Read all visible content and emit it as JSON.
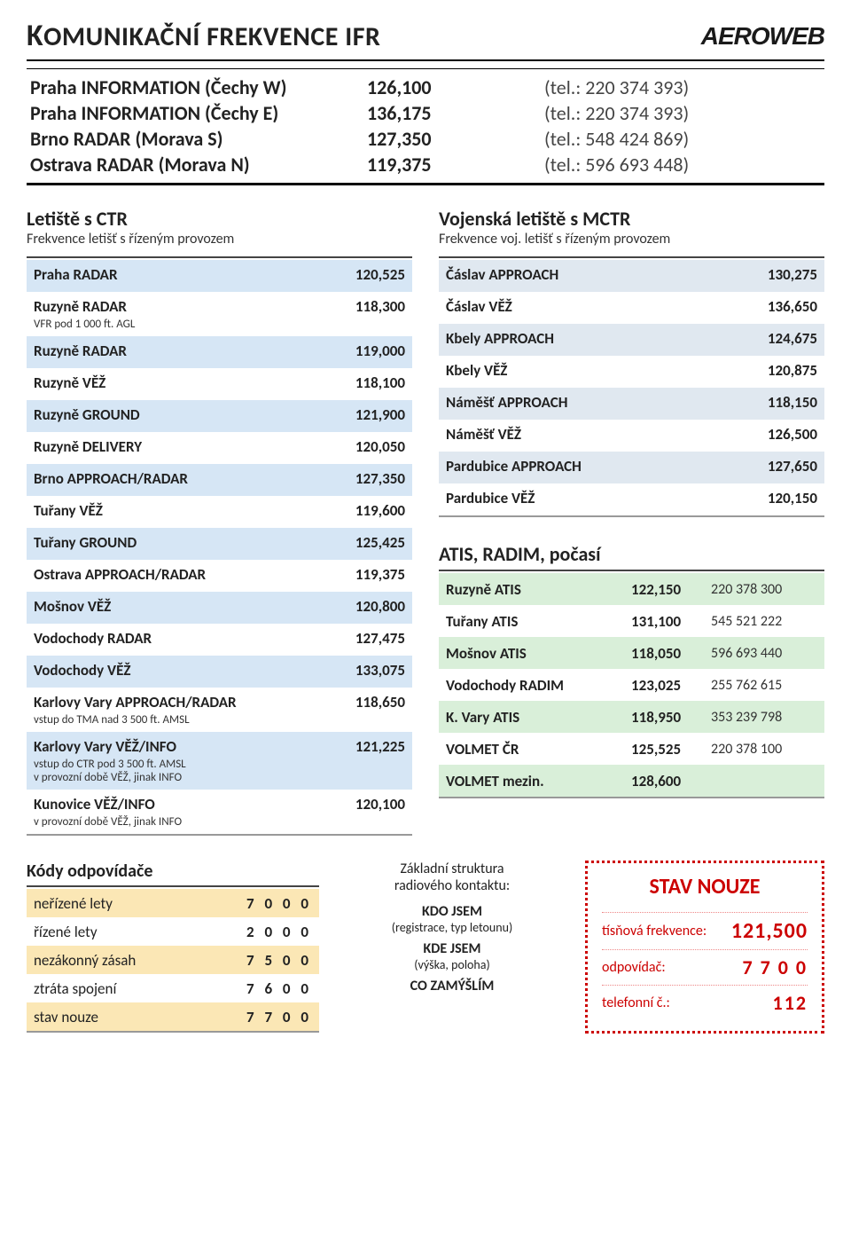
{
  "header": {
    "title_pre": "K",
    "title": "OMUNIKAČNÍ FREKVENCE",
    "title_suffix": "IFR",
    "logo": "AEROWEB"
  },
  "main_freq": [
    {
      "name": "Praha INFORMATION (Čechy W)",
      "freq": "126,100",
      "tel": "(tel.: 220 374 393)"
    },
    {
      "name": "Praha INFORMATION (Čechy E)",
      "freq": "136,175",
      "tel": "(tel.: 220 374 393)"
    },
    {
      "name": "Brno RADAR (Morava S)",
      "freq": "127,350",
      "tel": "(tel.: 548 424 869)"
    },
    {
      "name": "Ostrava RADAR (Morava N)",
      "freq": "119,375",
      "tel": "(tel.: 596 693 448)"
    }
  ],
  "ctr": {
    "title": "Letiště s CTR",
    "sub": "Frekvence letišť s řízeným provozem",
    "rows": [
      {
        "name": "Praha RADAR",
        "note": "",
        "freq": "120,525"
      },
      {
        "name": "Ruzyně RADAR",
        "note": "VFR pod 1 000 ft. AGL",
        "freq": "118,300"
      },
      {
        "name": "Ruzyně RADAR",
        "note": "",
        "freq": "119,000"
      },
      {
        "name": "Ruzyně VĚŽ",
        "note": "",
        "freq": "118,100"
      },
      {
        "name": "Ruzyně GROUND",
        "note": "",
        "freq": "121,900"
      },
      {
        "name": "Ruzyně DELIVERY",
        "note": "",
        "freq": "120,050"
      },
      {
        "name": "Brno APPROACH/RADAR",
        "note": "",
        "freq": "127,350"
      },
      {
        "name": "Tuřany VĚŽ",
        "note": "",
        "freq": "119,600"
      },
      {
        "name": "Tuřany GROUND",
        "note": "",
        "freq": "125,425"
      },
      {
        "name": "Ostrava APPROACH/RADAR",
        "note": "",
        "freq": "119,375"
      },
      {
        "name": "Mošnov VĚŽ",
        "note": "",
        "freq": "120,800"
      },
      {
        "name": "Vodochody RADAR",
        "note": "",
        "freq": "127,475"
      },
      {
        "name": "Vodochody VĚŽ",
        "note": "",
        "freq": "133,075"
      },
      {
        "name": "Karlovy Vary APPROACH/RADAR",
        "note": "vstup do TMA nad 3 500 ft. AMSL",
        "freq": "118,650"
      },
      {
        "name": "Karlovy Vary VĚŽ/INFO",
        "note": "vstup do CTR pod 3 500 ft. AMSL\nv provozní době VĚŽ, jinak INFO",
        "freq": "121,225"
      },
      {
        "name": "Kunovice VĚŽ/INFO",
        "note": "v provozní době VĚŽ, jinak INFO",
        "freq": "120,100"
      }
    ]
  },
  "mctr": {
    "title": "Vojenská letiště s MCTR",
    "sub": "Frekvence voj. letišť s řízeným provozem",
    "rows": [
      {
        "name": "Čáslav APPROACH",
        "freq": "130,275"
      },
      {
        "name": "Čáslav VĚŽ",
        "freq": "136,650"
      },
      {
        "name": "Kbely APPROACH",
        "freq": "124,675"
      },
      {
        "name": "Kbely VĚŽ",
        "freq": "120,875"
      },
      {
        "name": "Náměšť APPROACH",
        "freq": "118,150"
      },
      {
        "name": "Náměšť VĚŽ",
        "freq": "126,500"
      },
      {
        "name": "Pardubice APPROACH",
        "freq": "127,650"
      },
      {
        "name": "Pardubice VĚŽ",
        "freq": "120,150"
      }
    ]
  },
  "atis": {
    "title": "ATIS, RADIM, počasí",
    "rows": [
      {
        "name": "Ruzyně ATIS",
        "freq": "122,150",
        "phone": "220 378 300"
      },
      {
        "name": "Tuřany ATIS",
        "freq": "131,100",
        "phone": "545 521 222"
      },
      {
        "name": "Mošnov ATIS",
        "freq": "118,050",
        "phone": "596 693 440"
      },
      {
        "name": "Vodochody RADIM",
        "freq": "123,025",
        "phone": "255 762 615"
      },
      {
        "name": "K. Vary ATIS",
        "freq": "118,950",
        "phone": "353 239 798"
      },
      {
        "name": "VOLMET ČR",
        "freq": "125,525",
        "phone": "220 378 100"
      },
      {
        "name": "VOLMET mezin.",
        "freq": "128,600",
        "phone": ""
      }
    ]
  },
  "codes": {
    "title": "Kódy odpovídače",
    "rows": [
      {
        "label": "neřízené lety",
        "code": "7 0 0 0"
      },
      {
        "label": "řízené lety",
        "code": "2 0 0 0"
      },
      {
        "label": "nezákonný zásah",
        "code": "7 5 0 0"
      },
      {
        "label": "ztráta spojení",
        "code": "7 6 0 0"
      },
      {
        "label": "stav nouze",
        "code": "7 7 0 0"
      }
    ]
  },
  "contact": {
    "title1": "Základní struktura",
    "title2": "radiového kontaktu:",
    "l1": "KDO JSEM",
    "l1s": "(registrace, typ letounu)",
    "l2": "KDE JSEM",
    "l2s": "(výška, poloha)",
    "l3": "CO ZAMÝŠLÍM"
  },
  "emergency": {
    "title": "STAV NOUZE",
    "rows": [
      {
        "label": "tísňová frekvence:",
        "value": "121,500"
      },
      {
        "label": "odpovídač:",
        "value": "7 7 0 0"
      },
      {
        "label": "telefonní č.:",
        "value": "112"
      }
    ]
  }
}
